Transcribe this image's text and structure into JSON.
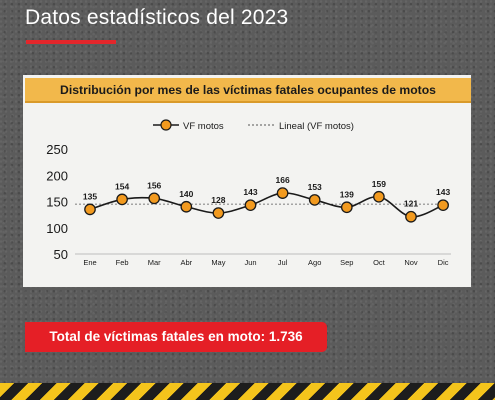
{
  "header": {
    "title": "Datos estadísticos del 2023",
    "accent_color": "#e3262b"
  },
  "chart_data": {
    "type": "line",
    "title": "Distribución por mes de las víctimas fatales ocupantes de motos",
    "categories": [
      "Ene",
      "Feb",
      "Mar",
      "Abr",
      "May",
      "Jun",
      "Jul",
      "Ago",
      "Sep",
      "Oct",
      "Nov",
      "Dic"
    ],
    "series": [
      {
        "name": "VF motos",
        "values": [
          135,
          154,
          156,
          140,
          128,
          143,
          166,
          153,
          139,
          159,
          121,
          143
        ],
        "color": "#f29a1f",
        "marker": "circle",
        "smooth": true
      }
    ],
    "trendline": {
      "name": "Lineal (VF motos)",
      "style": "dashed",
      "color": "#555555",
      "values": [
        145,
        145
      ]
    },
    "ylim": [
      50,
      250
    ],
    "yticks": [
      50,
      100,
      150,
      200,
      250
    ],
    "xlabel": "",
    "ylabel": "",
    "grid": false,
    "legend_position": "top-center",
    "data_labels": true
  },
  "summary": {
    "total_label": "Total de víctimas fatales en moto: 1.736",
    "banner_color": "#e51f26"
  },
  "colors": {
    "card_title_bg": "#f2b84b",
    "card_bg": "#f3f3f1",
    "stripe_yellow": "#f4c41c",
    "stripe_black": "#1d1d1d"
  }
}
